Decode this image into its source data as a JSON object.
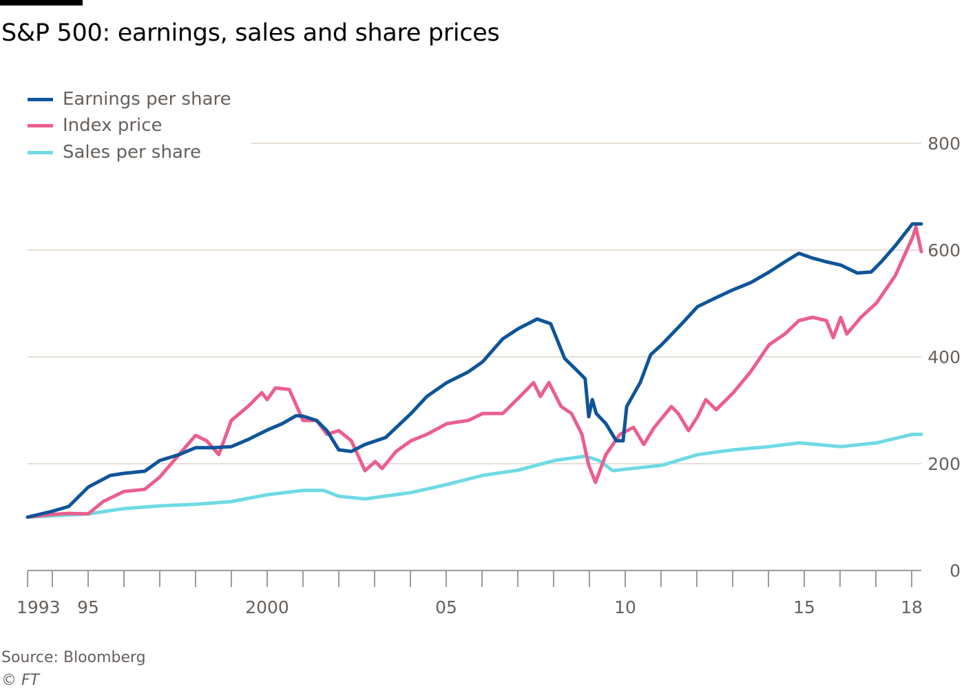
{
  "title": "S&P 500: earnings, sales and share prices",
  "source": "Source: Bloomberg",
  "copyright": "© FT",
  "chart_data": {
    "type": "line",
    "title": "S&P 500: earnings, sales and share prices",
    "xlabel": "",
    "ylabel": "",
    "xlim": [
      1993.31,
      2018.27
    ],
    "ylim": [
      0,
      800
    ],
    "yticks": [
      0,
      200,
      400,
      600,
      800
    ],
    "ytick_labels": [
      "0",
      "200",
      "400",
      "600",
      "800"
    ],
    "xticks": [
      1993.31,
      1995,
      2000,
      2005,
      2010,
      2015,
      2018
    ],
    "xtick_labels": [
      "1993",
      "95",
      "2000",
      "05",
      "10",
      "15",
      "18"
    ],
    "grid": true,
    "legend_position": "top-left",
    "series": [
      {
        "name": "Earnings per share",
        "color": "#0f5499",
        "x": [
          1993.31,
          1994,
          1994.46,
          1995,
          1995.62,
          1996,
          1996.58,
          1997,
          1997.54,
          1998,
          1998.5,
          1999,
          1999.46,
          2000,
          2000.42,
          2000.81,
          2001,
          2001.38,
          2001.67,
          2002,
          2002.35,
          2002.73,
          2003.31,
          2004.02,
          2004.46,
          2005.02,
          2005.62,
          2006.02,
          2006.58,
          2007.02,
          2007.54,
          2007.92,
          2008.31,
          2008.69,
          2008.88,
          2008.98,
          2009.08,
          2009.19,
          2009.46,
          2009.75,
          2009.94,
          2010.04,
          2010.42,
          2010.71,
          2011.02,
          2011.58,
          2012.02,
          2012.54,
          2013.02,
          2013.5,
          2014.02,
          2014.46,
          2014.85,
          2015.23,
          2015.62,
          2016.02,
          2016.48,
          2016.87,
          2017.15,
          2017.54,
          2018.02,
          2018.27
        ],
        "values": [
          100,
          111,
          120,
          156,
          178,
          182,
          186,
          206,
          217,
          230,
          230,
          232,
          245,
          263,
          275,
          290,
          289,
          281,
          262,
          226,
          223,
          236,
          249,
          294,
          326,
          352,
          372,
          391,
          434,
          453,
          471,
          462,
          397,
          372,
          359,
          288,
          320,
          294,
          275,
          243,
          243,
          307,
          352,
          404,
          423,
          462,
          494,
          511,
          526,
          539,
          559,
          578,
          594,
          585,
          578,
          572,
          557,
          559,
          578,
          608,
          649,
          649
        ]
      },
      {
        "name": "Index price",
        "color": "#eb5e8d",
        "x": [
          1993.31,
          1994,
          1994.46,
          1995,
          1995.42,
          1996,
          1996.58,
          1997,
          1997.54,
          1998,
          1998.31,
          1998.65,
          1999,
          1999.46,
          1999.85,
          2000,
          2000.23,
          2000.62,
          2001,
          2001.38,
          2001.67,
          2002,
          2002.35,
          2002.73,
          2003.02,
          2003.21,
          2003.6,
          2004.02,
          2004.46,
          2005.02,
          2005.62,
          2006.02,
          2006.58,
          2007.02,
          2007.44,
          2007.63,
          2007.87,
          2008.21,
          2008.5,
          2008.79,
          2008.98,
          2009.17,
          2009.46,
          2009.85,
          2010.23,
          2010.52,
          2010.81,
          2011.29,
          2011.48,
          2011.77,
          2012.02,
          2012.25,
          2012.54,
          2013.02,
          2013.5,
          2014.02,
          2014.46,
          2014.85,
          2015.23,
          2015.62,
          2015.81,
          2016.02,
          2016.19,
          2016.58,
          2017.02,
          2017.54,
          2018.02,
          2018.12,
          2018.27
        ],
        "values": [
          100,
          105,
          107,
          106,
          129,
          148,
          152,
          175,
          217,
          253,
          243,
          217,
          281,
          307,
          333,
          320,
          342,
          339,
          281,
          281,
          255,
          262,
          243,
          187,
          204,
          191,
          223,
          243,
          255,
          275,
          281,
          294,
          294,
          323,
          352,
          326,
          352,
          307,
          294,
          255,
          197,
          165,
          217,
          255,
          268,
          236,
          268,
          307,
          294,
          262,
          288,
          320,
          301,
          333,
          372,
          423,
          443,
          468,
          474,
          468,
          436,
          474,
          443,
          474,
          501,
          552,
          623,
          643,
          597
        ]
      },
      {
        "name": "Sales per share",
        "color": "#6fdae3",
        "x": [
          1993.31,
          1995,
          1996,
          1997,
          1998,
          1999,
          2000,
          2001,
          2001.58,
          2002,
          2002.73,
          2004.02,
          2005.02,
          2006.02,
          2007.02,
          2008.02,
          2008.88,
          2009.27,
          2009.65,
          2010.04,
          2011.02,
          2012.02,
          2013.02,
          2014.02,
          2014.85,
          2016.02,
          2017.02,
          2018.02,
          2018.27
        ],
        "values": [
          100,
          106,
          116,
          121,
          124,
          129,
          142,
          150,
          150,
          139,
          134,
          146,
          161,
          178,
          188,
          206,
          214,
          206,
          187,
          190,
          197,
          217,
          226,
          232,
          239,
          232,
          239,
          255,
          255
        ]
      }
    ]
  }
}
